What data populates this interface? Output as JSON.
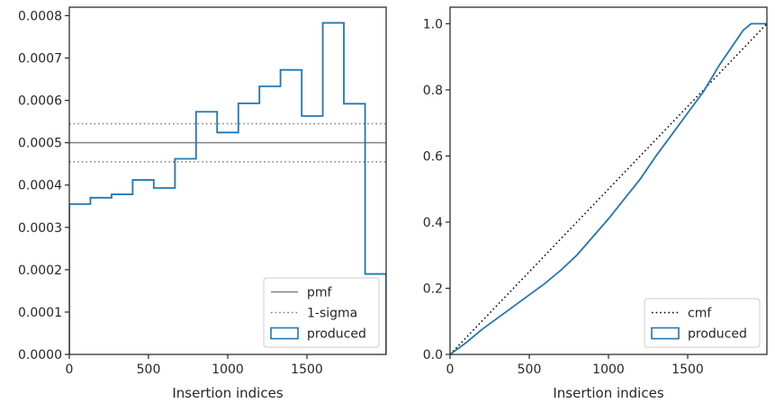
{
  "chart_data": [
    {
      "type": "line",
      "subtype": "step-histogram",
      "title": "",
      "xlabel": "Insertion indices",
      "ylabel": "",
      "xlim": [
        0,
        2000
      ],
      "ylim": [
        0,
        0.00082
      ],
      "xticks": [
        0,
        500,
        1000,
        1500
      ],
      "xtick_labels": [
        "0",
        "500",
        "1000",
        "1500"
      ],
      "yticks": [
        0,
        0.0001,
        0.0002,
        0.0003,
        0.0004,
        0.0005,
        0.0006,
        0.0007,
        0.0008
      ],
      "ytick_labels": [
        "0.0000",
        "0.0001",
        "0.0002",
        "0.0003",
        "0.0004",
        "0.0005",
        "0.0006",
        "0.0007",
        "0.0008"
      ],
      "grid": false,
      "legend_position": "bottom-right",
      "reference_lines": [
        {
          "name": "pmf",
          "y": 0.0005,
          "style": "solid",
          "color": "#808080"
        },
        {
          "name": "1-sigma",
          "y": 0.000545,
          "style": "dotted",
          "color": "#808080"
        },
        {
          "name": "1-sigma",
          "y": 0.000455,
          "style": "dotted",
          "color": "#808080"
        }
      ],
      "series": [
        {
          "name": "produced",
          "color": "#1f77b4",
          "bin_edges": [
            0,
            133,
            267,
            400,
            533,
            667,
            800,
            933,
            1067,
            1200,
            1333,
            1467,
            1600,
            1733,
            1867,
            2000
          ],
          "values": [
            0.000355,
            0.00037,
            0.000378,
            0.000412,
            0.000393,
            0.000462,
            0.000573,
            0.000524,
            0.000593,
            0.000633,
            0.000672,
            0.000563,
            0.000783,
            0.000592,
            0.00019
          ]
        }
      ],
      "legend": [
        "pmf",
        "1-sigma",
        "produced"
      ]
    },
    {
      "type": "line",
      "subtype": "step-cumulative",
      "title": "",
      "xlabel": "Insertion indices",
      "ylabel": "",
      "xlim": [
        0,
        2000
      ],
      "ylim": [
        0,
        1.05
      ],
      "xticks": [
        0,
        500,
        1000,
        1500
      ],
      "xtick_labels": [
        "0",
        "500",
        "1000",
        "1500"
      ],
      "yticks": [
        0,
        0.2,
        0.4,
        0.6,
        0.8,
        1.0
      ],
      "ytick_labels": [
        "0.0",
        "0.2",
        "0.4",
        "0.6",
        "0.8",
        "1.0"
      ],
      "grid": false,
      "legend_position": "bottom-right",
      "series": [
        {
          "name": "cmf",
          "style": "dotted",
          "color": "#000000",
          "x": [
            0,
            2000
          ],
          "y": [
            0,
            1
          ]
        },
        {
          "name": "produced",
          "color": "#1f77b4",
          "x": [
            0,
            100,
            200,
            300,
            400,
            500,
            600,
            700,
            800,
            900,
            1000,
            1100,
            1200,
            1300,
            1400,
            1500,
            1600,
            1700,
            1800,
            1850,
            1900,
            2000
          ],
          "y": [
            0,
            0.035,
            0.075,
            0.11,
            0.145,
            0.18,
            0.215,
            0.255,
            0.3,
            0.355,
            0.41,
            0.47,
            0.53,
            0.6,
            0.665,
            0.73,
            0.795,
            0.875,
            0.945,
            0.98,
            1.0,
            1.0
          ]
        }
      ],
      "legend": [
        "cmf",
        "produced"
      ]
    }
  ]
}
